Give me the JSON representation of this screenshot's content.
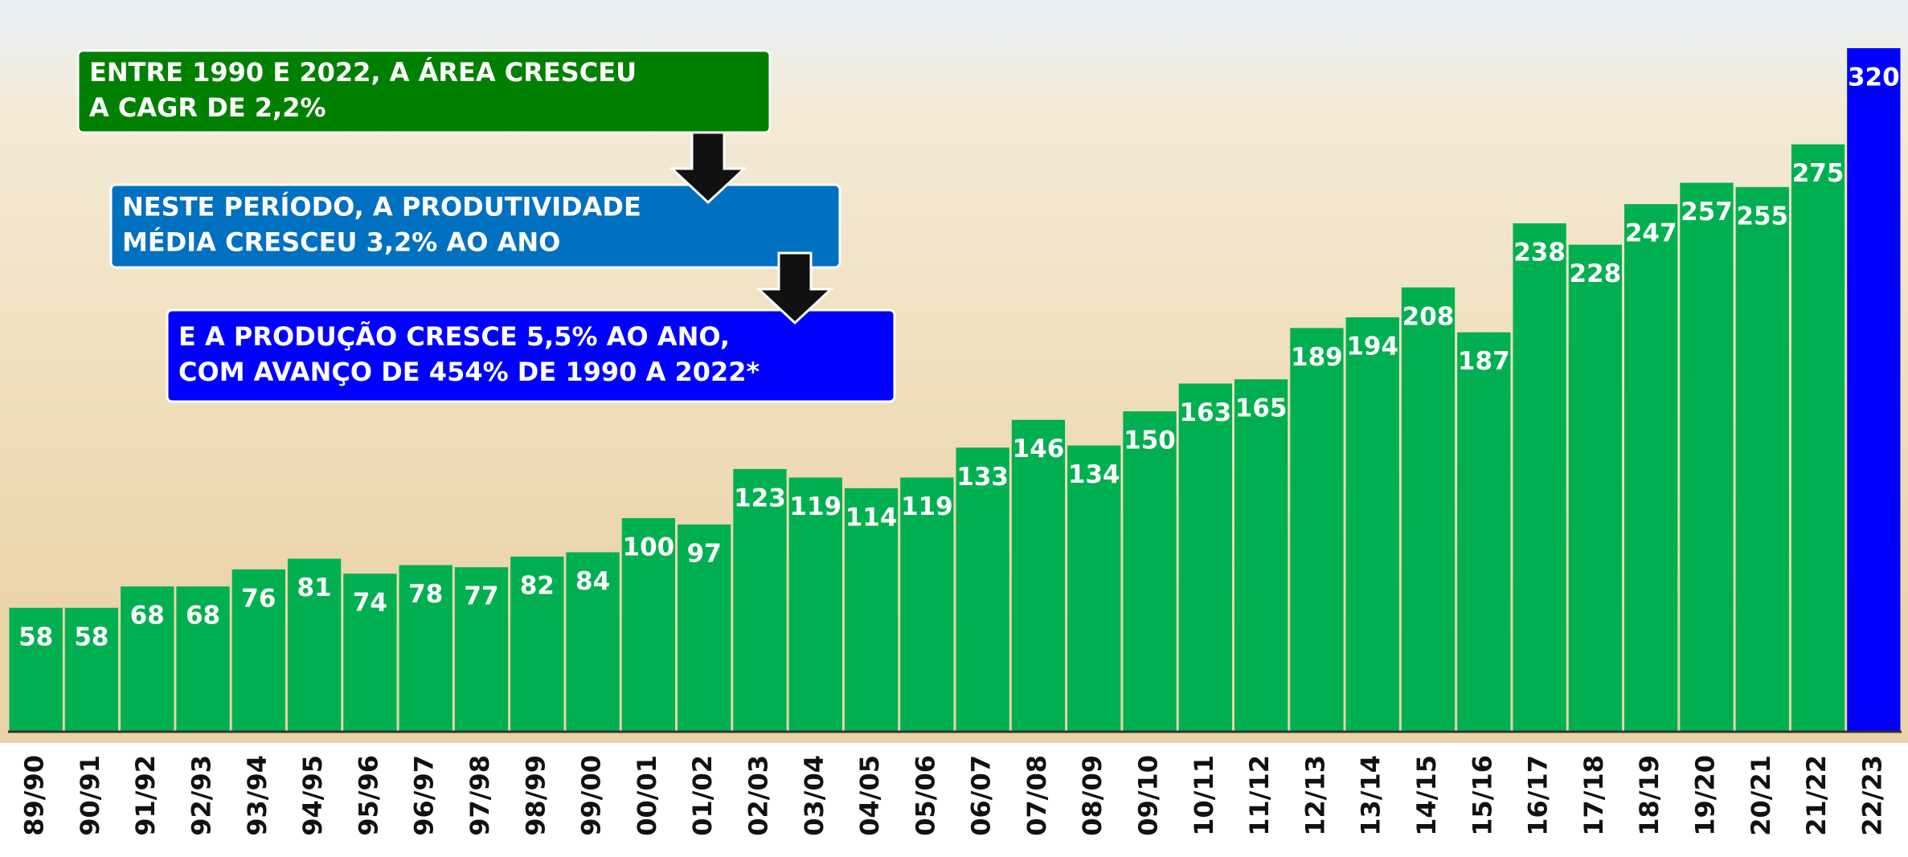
{
  "chart_data": {
    "type": "bar",
    "categories": [
      "89/90",
      "90/91",
      "91/92",
      "92/93",
      "93/94",
      "94/95",
      "95/96",
      "96/97",
      "97/98",
      "98/99",
      "99/00",
      "00/01",
      "01/02",
      "02/03",
      "03/04",
      "04/05",
      "05/06",
      "06/07",
      "07/08",
      "08/09",
      "09/10",
      "10/11",
      "11/12",
      "12/13",
      "13/14",
      "14/15",
      "15/16",
      "16/17",
      "17/18",
      "18/19",
      "19/20",
      "20/21",
      "21/22",
      "22/23"
    ],
    "values": [
      58,
      58,
      68,
      68,
      76,
      81,
      74,
      78,
      77,
      82,
      84,
      100,
      97,
      123,
      119,
      114,
      119,
      133,
      146,
      134,
      150,
      163,
      165,
      189,
      194,
      208,
      187,
      238,
      228,
      247,
      257,
      255,
      275,
      320
    ],
    "colors": [
      "#00b050",
      "#00b050",
      "#00b050",
      "#00b050",
      "#00b050",
      "#00b050",
      "#00b050",
      "#00b050",
      "#00b050",
      "#00b050",
      "#00b050",
      "#00b050",
      "#00b050",
      "#00b050",
      "#00b050",
      "#00b050",
      "#00b050",
      "#00b050",
      "#00b050",
      "#00b050",
      "#00b050",
      "#00b050",
      "#00b050",
      "#00b050",
      "#00b050",
      "#00b050",
      "#00b050",
      "#00b050",
      "#00b050",
      "#00b050",
      "#00b050",
      "#00b050",
      "#00b050",
      "#0000ff"
    ],
    "annotations": [
      {
        "lines": [
          "ENTRE 1990 E 2022, A ÁREA CRESCEU",
          "A CAGR DE 2,2%"
        ],
        "color": "#008000"
      },
      {
        "lines": [
          "NESTE PERÍODO, A PRODUTIVIDADE",
          "MÉDIA CRESCEU 3,2% AO ANO"
        ],
        "color": "#0070c0"
      },
      {
        "lines": [
          "E A PRODUÇÃO CRESCE 5,5% AO ANO,",
          "COM AVANÇO DE 454% DE 1990 A 2022*"
        ],
        "color": "#0000ff"
      }
    ]
  }
}
